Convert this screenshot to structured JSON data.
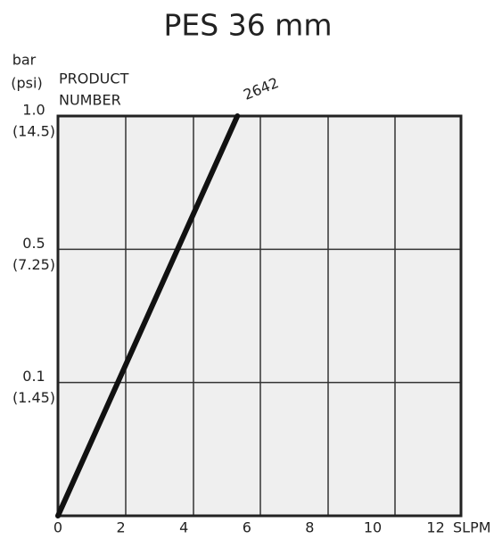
{
  "chart_data": {
    "type": "line",
    "title": "PES 36 mm",
    "y_label": "bar",
    "y_label_unit": "(psi)",
    "legend_title": [
      "PRODUCT",
      "NUMBER"
    ],
    "x_label": "SLPM",
    "x": [
      0,
      1.9,
      3.8,
      5.7
    ],
    "series": [
      {
        "name": "2642",
        "color": "#111111",
        "values": [
          0,
          0.1,
          0.5,
          1.0
        ]
      }
    ],
    "xlim": [
      0,
      12.8
    ],
    "xticks": [
      0,
      2,
      4,
      6,
      8,
      10,
      12
    ],
    "ylim": [
      0,
      1.0
    ],
    "yticks": [
      {
        "value": 0.1,
        "label": "0.1",
        "sublabel": "(1.45)"
      },
      {
        "value": 0.5,
        "label": "0.5",
        "sublabel": "(7.25)"
      },
      {
        "value": 1.0,
        "label": "1.0",
        "sublabel": "(14.5)"
      }
    ],
    "y_scale": "even-ticks",
    "grid": true
  }
}
